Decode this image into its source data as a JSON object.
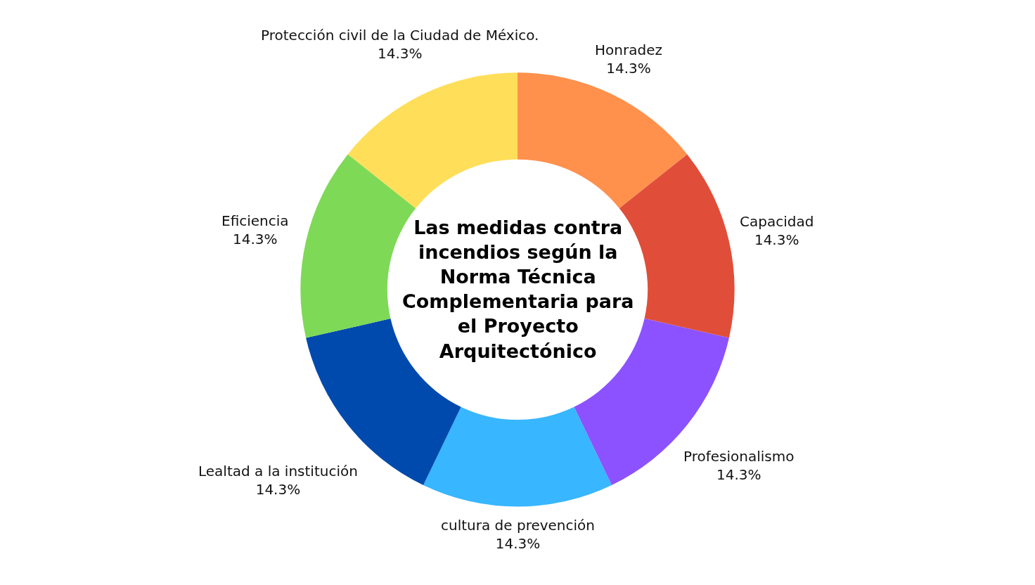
{
  "chart_data": {
    "type": "donut",
    "title": "Las medidas contra incendios según la Norma Técnica Complementaria para el Proyecto Arquitectónico",
    "categories": [
      "Honradez",
      "Capacidad",
      "Profesionalismo",
      "cultura de prevención",
      "Lealtad a la institución",
      "Eficiencia",
      "Protección civil de la Ciudad de México."
    ],
    "values": [
      14.3,
      14.3,
      14.3,
      14.3,
      14.3,
      14.3,
      14.3
    ],
    "colors": [
      "#ff914d",
      "#e04e39",
      "#8c52ff",
      "#38b6ff",
      "#004aad",
      "#7ed957",
      "#ffde59"
    ],
    "value_labels": [
      "14.3%",
      "14.3%",
      "14.3%",
      "14.3%",
      "14.3%",
      "14.3%",
      "14.3%"
    ]
  }
}
